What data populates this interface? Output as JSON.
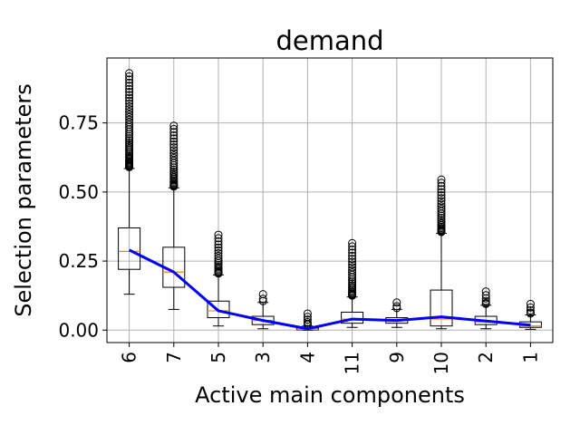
{
  "chart_data": {
    "type": "box",
    "title": "demand",
    "xlabel": "Active main components",
    "ylabel": "Selection parameters",
    "ylim": [
      -0.045,
      0.985
    ],
    "yticks": [
      0.0,
      0.25,
      0.5,
      0.75
    ],
    "ytick_labels": [
      "0.00",
      "0.25",
      "0.50",
      "0.75"
    ],
    "grid": true,
    "categories": [
      "6",
      "7",
      "5",
      "3",
      "4",
      "11",
      "9",
      "10",
      "2",
      "1"
    ],
    "boxes": [
      {
        "category": "6",
        "whisker_low": 0.13,
        "q1": 0.22,
        "median": 0.285,
        "q3": 0.37,
        "whisker_high": 0.585,
        "outliers_min": 0.59,
        "outliers_max": 0.93
      },
      {
        "category": "7",
        "whisker_low": 0.075,
        "q1": 0.155,
        "median": 0.21,
        "q3": 0.3,
        "whisker_high": 0.515,
        "outliers_min": 0.52,
        "outliers_max": 0.74
      },
      {
        "category": "5",
        "whisker_low": 0.015,
        "q1": 0.045,
        "median": 0.07,
        "q3": 0.105,
        "whisker_high": 0.2,
        "outliers_min": 0.205,
        "outliers_max": 0.345
      },
      {
        "category": "3",
        "whisker_low": 0.005,
        "q1": 0.02,
        "median": 0.035,
        "q3": 0.05,
        "whisker_high": 0.1,
        "outliers_min": 0.105,
        "outliers_max": 0.13
      },
      {
        "category": "4",
        "whisker_low": 0.0,
        "q1": 0.001,
        "median": 0.003,
        "q3": 0.008,
        "whisker_high": 0.015,
        "outliers_min": 0.02,
        "outliers_max": 0.06
      },
      {
        "category": "11",
        "whisker_low": 0.01,
        "q1": 0.025,
        "median": 0.04,
        "q3": 0.065,
        "whisker_high": 0.12,
        "outliers_min": 0.125,
        "outliers_max": 0.315
      },
      {
        "category": "9",
        "whisker_low": 0.01,
        "q1": 0.025,
        "median": 0.035,
        "q3": 0.045,
        "whisker_high": 0.075,
        "outliers_min": 0.08,
        "outliers_max": 0.1
      },
      {
        "category": "10",
        "whisker_low": 0.005,
        "q1": 0.015,
        "median": 0.04,
        "q3": 0.145,
        "whisker_high": 0.35,
        "outliers_min": 0.355,
        "outliers_max": 0.545
      },
      {
        "category": "2",
        "whisker_low": 0.005,
        "q1": 0.02,
        "median": 0.03,
        "q3": 0.05,
        "whisker_high": 0.09,
        "outliers_min": 0.095,
        "outliers_max": 0.14
      },
      {
        "category": "1",
        "whisker_low": 0.003,
        "q1": 0.01,
        "median": 0.015,
        "q3": 0.03,
        "whisker_high": 0.055,
        "outliers_min": 0.06,
        "outliers_max": 0.095
      }
    ],
    "mean_line": {
      "color": "#0000ff",
      "values": [
        0.29,
        0.21,
        0.07,
        0.035,
        0.005,
        0.04,
        0.035,
        0.048,
        0.033,
        0.018
      ]
    },
    "colors": {
      "median": "#ff7f0e",
      "box": "#000000",
      "grid": "#b0b0b0",
      "mean": "#0000ff"
    }
  }
}
